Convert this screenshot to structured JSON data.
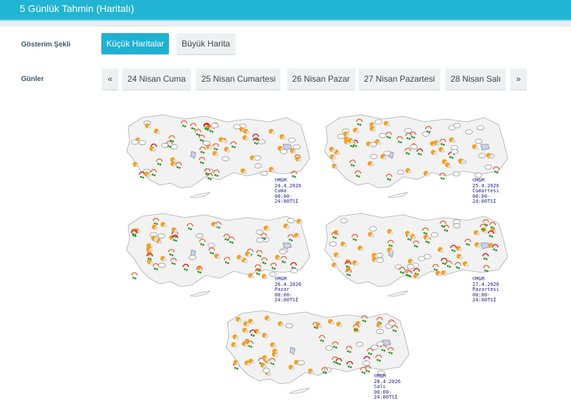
{
  "header": {
    "title": "5 Günlük Tahmin (Haritalı)"
  },
  "display": {
    "label": "Gösterim Şekli",
    "options": [
      {
        "label": "Küçük Haritalar",
        "active": true
      },
      {
        "label": "Büyük Harita",
        "active": false
      }
    ]
  },
  "days": {
    "label": "Günler",
    "prev": "«",
    "next": "»",
    "items": [
      "24 Nisan Cuma",
      "25 Nisan Cumartesi",
      "26 Nisan Pazar",
      "27 Nisan Pazartesi",
      "28 Nisan Salı"
    ]
  },
  "colors": {
    "accent": "#1fb1d2",
    "caption": "#1c1e8a"
  },
  "maps": [
    {
      "source": "©MGM",
      "date": "24.4.2026",
      "day": "Cuma",
      "time": "00:00-24:00TSİ"
    },
    {
      "source": "©MGM",
      "date": "25.4.2026",
      "day": "Cumartesi",
      "time": "00:00-24:00TSİ"
    },
    {
      "source": "©MGM",
      "date": "26.4.2026",
      "day": "Pazar",
      "time": "00:00-24:00TSİ"
    },
    {
      "source": "©MGM",
      "date": "27.4.2026",
      "day": "Pazartesi",
      "time": "00:00-24:00TSİ"
    },
    {
      "source": "©MGM",
      "date": "28.4.2026",
      "day": "Salı",
      "time": "00:00-24:00TSİ"
    }
  ]
}
